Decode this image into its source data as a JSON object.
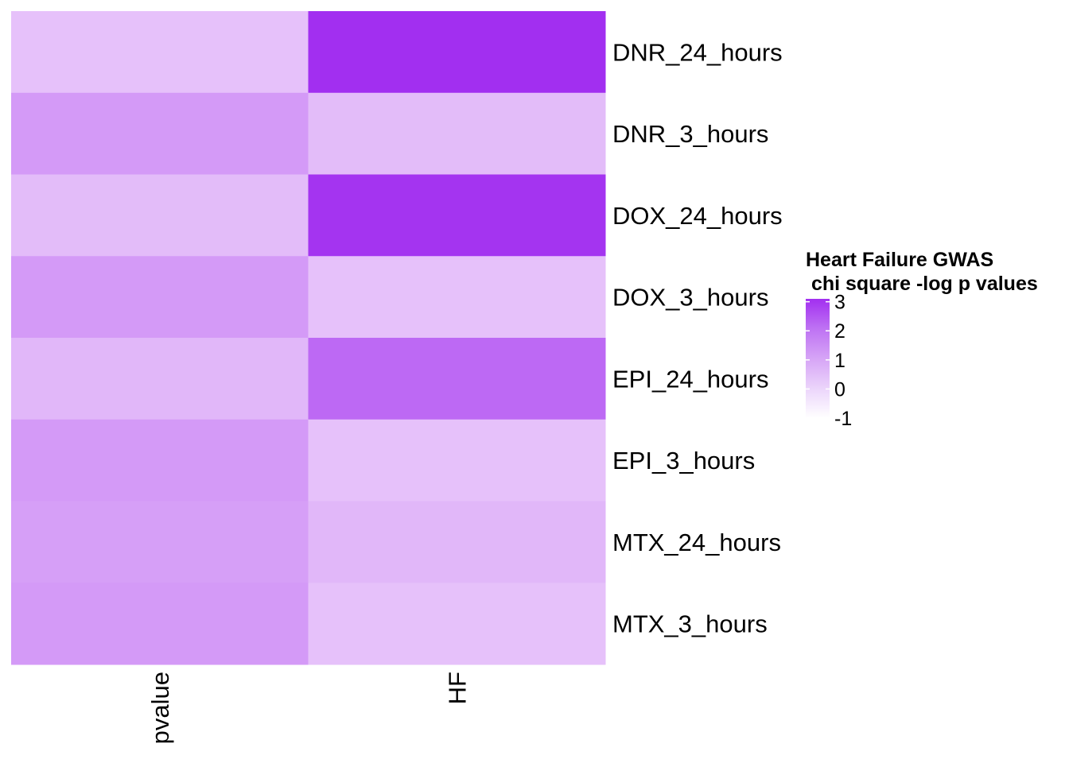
{
  "chart_data": {
    "type": "heatmap",
    "title": "",
    "columns": [
      "pvalue",
      "HF"
    ],
    "rows": [
      "DNR_24_hours",
      "DNR_3_hours",
      "DOX_24_hours",
      "DOX_3_hours",
      "EPI_24_hours",
      "EPI_3_hours",
      "MTX_24_hours",
      "MTX_3_hours"
    ],
    "values": [
      [
        0.1,
        3.1
      ],
      [
        0.9,
        0.2
      ],
      [
        0.2,
        3.0
      ],
      [
        0.9,
        0.1
      ],
      [
        0.3,
        1.9
      ],
      [
        0.9,
        0.1
      ],
      [
        0.8,
        0.3
      ],
      [
        0.9,
        0.1
      ]
    ],
    "legend": {
      "title_line1": "Heart Failure GWAS",
      "title_line2": " chi square -log p values",
      "ticks": [
        3,
        2,
        1,
        0,
        -1
      ],
      "tick_labels": [
        "3",
        "2",
        "1",
        "0",
        "-1"
      ],
      "range": [
        -1,
        3.1
      ],
      "placement": "right"
    },
    "color_scale": {
      "low": "#ffffff",
      "mid": "#e8c6fa",
      "high": "#a22ff0",
      "low_value": -1,
      "mid_value": 0,
      "high_value": 3.1
    }
  }
}
